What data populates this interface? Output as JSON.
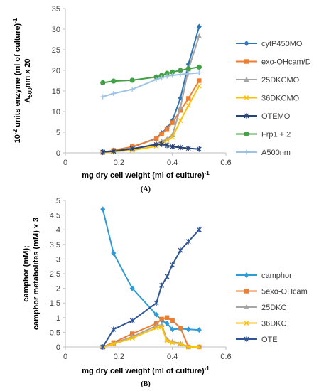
{
  "chart_data": [
    {
      "type": "line",
      "panel_label": "(A)",
      "xlabel": "mg dry cell weight (ml of culture)",
      "xlabel_sup": "-1",
      "ylabel_line1": "10",
      "ylabel_line1_sup": "-2",
      "ylabel_line1_rest": " units enzyme (ml of culture)",
      "ylabel_line1_rest_sup": "-1",
      "ylabel_line2": "A",
      "ylabel_line2_sub": "500",
      "ylabel_line2_rest": "nm x 20",
      "xlim": [
        0,
        0.6
      ],
      "ylim": [
        0,
        35
      ],
      "xticks": [
        0,
        0.2,
        0.4,
        0.6
      ],
      "xtick_labels": [
        "0",
        "0.2",
        "0.4",
        "0.6"
      ],
      "yticks": [
        0,
        5,
        10,
        15,
        20,
        25,
        30,
        35
      ],
      "ytick_labels": [
        "0",
        "5",
        "10",
        "15",
        "20",
        "25",
        "30",
        "35"
      ],
      "grid": false,
      "legend_position": "right",
      "series": [
        {
          "name": "cytP450MO",
          "color": "#2E75B6",
          "marker": "diamond",
          "x": [
            0.14,
            0.18,
            0.25,
            0.34,
            0.36,
            0.38,
            0.4,
            0.43,
            0.46,
            0.5
          ],
          "y": [
            0.1,
            0.6,
            1.4,
            3.5,
            4.8,
            6.0,
            7.8,
            13.3,
            21.5,
            30.6
          ]
        },
        {
          "name": "exo-OHcam/D",
          "color": "#ED7D31",
          "marker": "square",
          "x": [
            0.14,
            0.18,
            0.25,
            0.34,
            0.36,
            0.38,
            0.4,
            0.43,
            0.46,
            0.5
          ],
          "y": [
            0.1,
            0.6,
            1.5,
            3.4,
            4.6,
            5.8,
            7.3,
            10.3,
            13.2,
            17.5
          ]
        },
        {
          "name": "25DKCMO",
          "color": "#A5A5A5",
          "marker": "triangle",
          "x": [
            0.14,
            0.18,
            0.25,
            0.34,
            0.36,
            0.38,
            0.4,
            0.43,
            0.46,
            0.5
          ],
          "y": [
            0.1,
            0.4,
            0.8,
            2.2,
            2.8,
            3.3,
            4.3,
            11.0,
            20.3,
            28.3
          ]
        },
        {
          "name": "36DKCMO",
          "color": "#FFC000",
          "marker": "x",
          "x": [
            0.14,
            0.18,
            0.25,
            0.34,
            0.36,
            0.38,
            0.4,
            0.43,
            0.46,
            0.5
          ],
          "y": [
            0.1,
            0.3,
            0.6,
            1.6,
            2.2,
            3.0,
            3.8,
            7.8,
            11.5,
            16.2
          ]
        },
        {
          "name": "OTEMO",
          "color": "#264478",
          "marker": "asterisk",
          "x": [
            0.14,
            0.18,
            0.25,
            0.34,
            0.36,
            0.38,
            0.4,
            0.43,
            0.46,
            0.5
          ],
          "y": [
            0.2,
            0.4,
            1.0,
            2.0,
            2.1,
            1.8,
            1.5,
            1.3,
            1.1,
            0.9
          ]
        },
        {
          "name": "Frp1 + 2",
          "color": "#43A047",
          "marker": "circle",
          "x": [
            0.14,
            0.18,
            0.25,
            0.34,
            0.36,
            0.38,
            0.4,
            0.43,
            0.46,
            0.5
          ],
          "y": [
            17.0,
            17.4,
            17.6,
            18.4,
            18.8,
            19.3,
            19.6,
            20.0,
            20.4,
            20.8
          ]
        },
        {
          "name": "A500nm",
          "color": "#9DC3E6",
          "marker": "plus",
          "x": [
            0.14,
            0.18,
            0.25,
            0.34,
            0.36,
            0.38,
            0.4,
            0.43,
            0.46,
            0.5
          ],
          "y": [
            13.6,
            14.4,
            15.4,
            17.8,
            18.2,
            18.6,
            18.8,
            19.0,
            19.2,
            19.4
          ]
        }
      ]
    },
    {
      "type": "line",
      "panel_label": "(B)",
      "xlabel": "mg dry cell weight (ml of culture)",
      "xlabel_sup": "-1",
      "ylabel_line1": "camphor (mM);",
      "ylabel_line2": "camphor metabolites (mM) x 3",
      "xlim": [
        0,
        0.6
      ],
      "ylim": [
        0,
        5
      ],
      "xticks": [
        0,
        0.2,
        0.4,
        0.6
      ],
      "xtick_labels": [
        "0",
        "0.2",
        "0.4",
        "0.6"
      ],
      "yticks": [
        0,
        0.5,
        1,
        1.5,
        2,
        2.5,
        3,
        3.5,
        4,
        4.5,
        5
      ],
      "ytick_labels": [
        "0",
        "0.5",
        "1",
        "1.5",
        "2",
        "2.5",
        "3",
        "3.5",
        "4",
        "4.5",
        "5"
      ],
      "grid": false,
      "legend_position": "right",
      "series": [
        {
          "name": "camphor",
          "color": "#2E9BD6",
          "marker": "diamond",
          "x": [
            0.14,
            0.18,
            0.25,
            0.34,
            0.36,
            0.38,
            0.4,
            0.43,
            0.46,
            0.5
          ],
          "y": [
            4.7,
            3.2,
            2.0,
            1.1,
            0.9,
            0.8,
            0.6,
            0.62,
            0.6,
            0.58
          ]
        },
        {
          "name": "5exo-OHcam",
          "color": "#ED7D31",
          "marker": "square",
          "x": [
            0.14,
            0.18,
            0.25,
            0.34,
            0.36,
            0.38,
            0.4,
            0.43,
            0.46,
            0.5
          ],
          "y": [
            0.0,
            0.15,
            0.45,
            0.8,
            0.95,
            1.0,
            0.9,
            0.65,
            0.0,
            0.0
          ]
        },
        {
          "name": "25DKC",
          "color": "#A5A5A5",
          "marker": "triangle",
          "x": [
            0.14,
            0.18,
            0.25,
            0.34,
            0.36,
            0.38,
            0.4,
            0.43,
            0.46,
            0.5
          ],
          "y": [
            0.0,
            0.12,
            0.35,
            0.72,
            0.75,
            0.25,
            0.18,
            0.12,
            0.0,
            0.0
          ]
        },
        {
          "name": "36DKC",
          "color": "#FFC000",
          "marker": "x",
          "x": [
            0.14,
            0.18,
            0.25,
            0.34,
            0.36,
            0.38,
            0.4,
            0.43,
            0.46,
            0.5
          ],
          "y": [
            0.0,
            0.1,
            0.3,
            0.65,
            0.68,
            0.2,
            0.15,
            0.1,
            0.0,
            0.0
          ]
        },
        {
          "name": "OTE",
          "color": "#2F5597",
          "marker": "asterisk",
          "x": [
            0.14,
            0.18,
            0.25,
            0.34,
            0.36,
            0.38,
            0.4,
            0.43,
            0.46,
            0.5
          ],
          "y": [
            0.0,
            0.6,
            0.9,
            1.5,
            2.1,
            2.4,
            2.8,
            3.3,
            3.6,
            4.0
          ]
        }
      ]
    }
  ]
}
